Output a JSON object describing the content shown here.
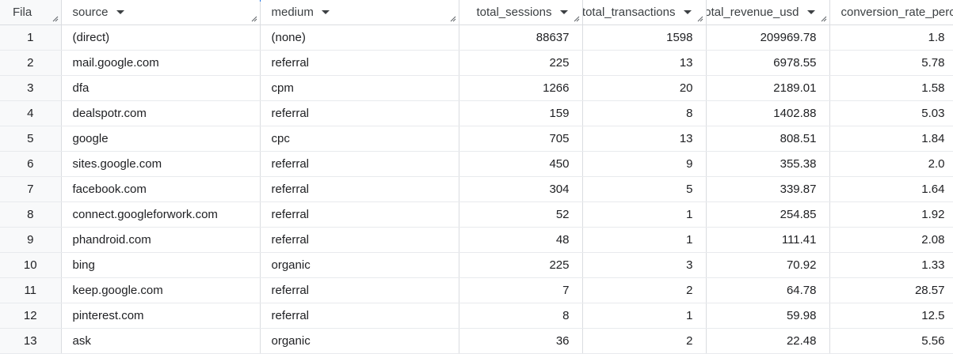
{
  "table": {
    "columns": [
      {
        "key": "fila",
        "label": "Fila"
      },
      {
        "key": "source",
        "label": "source"
      },
      {
        "key": "medium",
        "label": "medium"
      },
      {
        "key": "total_sessions",
        "label": "total_sessions"
      },
      {
        "key": "total_transactions",
        "label": "total_transactions"
      },
      {
        "key": "total_revenue_usd",
        "label": "total_revenue_usd"
      },
      {
        "key": "conversion_rate",
        "label": "conversion_rate_perc"
      }
    ],
    "rows": [
      {
        "fila": "1",
        "source": "(direct)",
        "medium": "(none)",
        "total_sessions": "88637",
        "total_transactions": "1598",
        "total_revenue_usd": "209969.78",
        "conversion_rate": "1.8"
      },
      {
        "fila": "2",
        "source": "mail.google.com",
        "medium": "referral",
        "total_sessions": "225",
        "total_transactions": "13",
        "total_revenue_usd": "6978.55",
        "conversion_rate": "5.78"
      },
      {
        "fila": "3",
        "source": "dfa",
        "medium": "cpm",
        "total_sessions": "1266",
        "total_transactions": "20",
        "total_revenue_usd": "2189.01",
        "conversion_rate": "1.58"
      },
      {
        "fila": "4",
        "source": "dealspotr.com",
        "medium": "referral",
        "total_sessions": "159",
        "total_transactions": "8",
        "total_revenue_usd": "1402.88",
        "conversion_rate": "5.03"
      },
      {
        "fila": "5",
        "source": "google",
        "medium": "cpc",
        "total_sessions": "705",
        "total_transactions": "13",
        "total_revenue_usd": "808.51",
        "conversion_rate": "1.84"
      },
      {
        "fila": "6",
        "source": "sites.google.com",
        "medium": "referral",
        "total_sessions": "450",
        "total_transactions": "9",
        "total_revenue_usd": "355.38",
        "conversion_rate": "2.0"
      },
      {
        "fila": "7",
        "source": "facebook.com",
        "medium": "referral",
        "total_sessions": "304",
        "total_transactions": "5",
        "total_revenue_usd": "339.87",
        "conversion_rate": "1.64"
      },
      {
        "fila": "8",
        "source": "connect.googleforwork.com",
        "medium": "referral",
        "total_sessions": "52",
        "total_transactions": "1",
        "total_revenue_usd": "254.85",
        "conversion_rate": "1.92"
      },
      {
        "fila": "9",
        "source": "phandroid.com",
        "medium": "referral",
        "total_sessions": "48",
        "total_transactions": "1",
        "total_revenue_usd": "111.41",
        "conversion_rate": "2.08"
      },
      {
        "fila": "10",
        "source": "bing",
        "medium": "organic",
        "total_sessions": "225",
        "total_transactions": "3",
        "total_revenue_usd": "70.92",
        "conversion_rate": "1.33"
      },
      {
        "fila": "11",
        "source": "keep.google.com",
        "medium": "referral",
        "total_sessions": "7",
        "total_transactions": "2",
        "total_revenue_usd": "64.78",
        "conversion_rate": "28.57"
      },
      {
        "fila": "12",
        "source": "pinterest.com",
        "medium": "referral",
        "total_sessions": "8",
        "total_transactions": "1",
        "total_revenue_usd": "59.98",
        "conversion_rate": "12.5"
      },
      {
        "fila": "13",
        "source": "ask",
        "medium": "organic",
        "total_sessions": "36",
        "total_transactions": "2",
        "total_revenue_usd": "22.48",
        "conversion_rate": "5.56"
      }
    ]
  },
  "colors": {
    "accent": "#1a73e8",
    "grid": "#dadce0",
    "row_header_bg": "#f8f9fa"
  }
}
